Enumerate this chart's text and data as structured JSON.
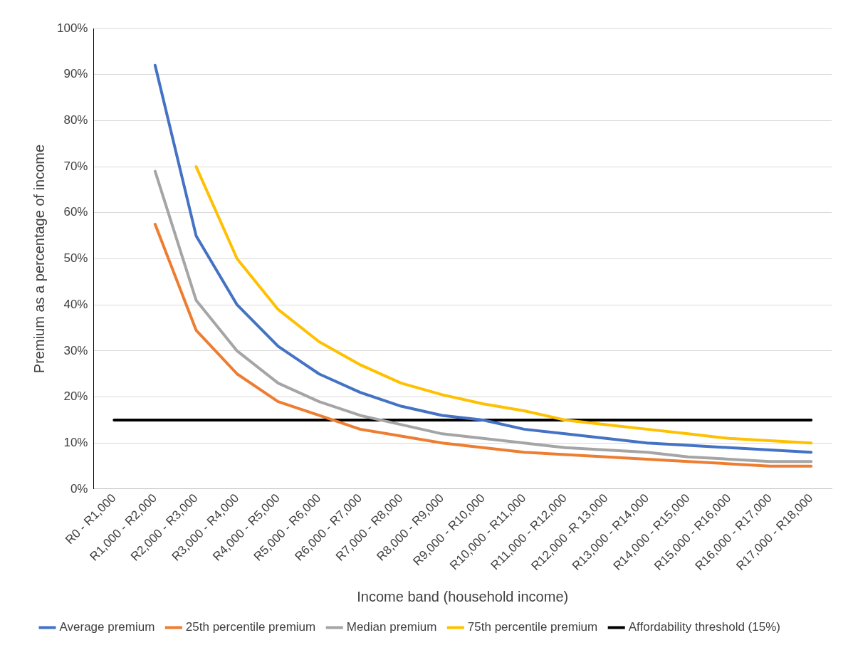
{
  "chart_data": {
    "type": "line",
    "xlabel": "Income band (household income)",
    "ylabel": "Premium as a percentage of income",
    "categories": [
      "R0 - R1,000",
      "R1,000 - R2,000",
      "R2,000 - R3,000",
      "R3,000 - R4,000",
      "R4,000 - R5,000",
      "R5,000 - R6,000",
      "R6,000 - R7,000",
      "R7,000 - R8,000",
      "R8,000 - R9,000",
      "R9,000 - R10,000",
      "R10,000 - R11,000",
      "R11,000 - R12,000",
      "R12,000 -R 13,000",
      "R13,000 - R14,000",
      "R14,000 - R15,000",
      "R15,000 - R16,000",
      "R16,000 - R17,000",
      "R17,000 - R18,000"
    ],
    "series": [
      {
        "name": "Average premium",
        "color": "#4472c4",
        "values": [
          null,
          92,
          55,
          40,
          31,
          25,
          21,
          18,
          16,
          15,
          13,
          12,
          11,
          10,
          9.5,
          9,
          8.5,
          8
        ]
      },
      {
        "name": "25th percentile premium",
        "color": "#ed7d31",
        "values": [
          null,
          57.5,
          34.5,
          25,
          19,
          16,
          13,
          11.5,
          10,
          9,
          8,
          7.5,
          7,
          6.5,
          6,
          5.5,
          5,
          5
        ]
      },
      {
        "name": "Median premium",
        "color": "#a5a5a5",
        "values": [
          null,
          69,
          41,
          30,
          23,
          19,
          16,
          14,
          12,
          11,
          10,
          9,
          8.5,
          8,
          7,
          6.5,
          6,
          6
        ]
      },
      {
        "name": "75th percentile premium",
        "color": "#ffc000",
        "values": [
          null,
          null,
          70,
          50,
          39,
          32,
          27,
          23,
          20.5,
          18.5,
          17,
          15,
          14,
          13,
          12,
          11,
          10.5,
          10
        ]
      },
      {
        "name": "Affordability threshold (15%)",
        "color": "#000000",
        "values": [
          15,
          15,
          15,
          15,
          15,
          15,
          15,
          15,
          15,
          15,
          15,
          15,
          15,
          15,
          15,
          15,
          15,
          15
        ]
      }
    ],
    "ylim": [
      0,
      100
    ],
    "yticks": [
      {
        "value": 0,
        "label": "0%"
      },
      {
        "value": 10,
        "label": "10%"
      },
      {
        "value": 20,
        "label": "20%"
      },
      {
        "value": 30,
        "label": "30%"
      },
      {
        "value": 40,
        "label": "40%"
      },
      {
        "value": 50,
        "label": "50%"
      },
      {
        "value": 60,
        "label": "60%"
      },
      {
        "value": 70,
        "label": "70%"
      },
      {
        "value": 80,
        "label": "80%"
      },
      {
        "value": 90,
        "label": "90%"
      },
      {
        "value": 100,
        "label": "100%"
      }
    ],
    "grid": "y",
    "legend": "bottom",
    "marker": "none",
    "line_style": "solid"
  }
}
